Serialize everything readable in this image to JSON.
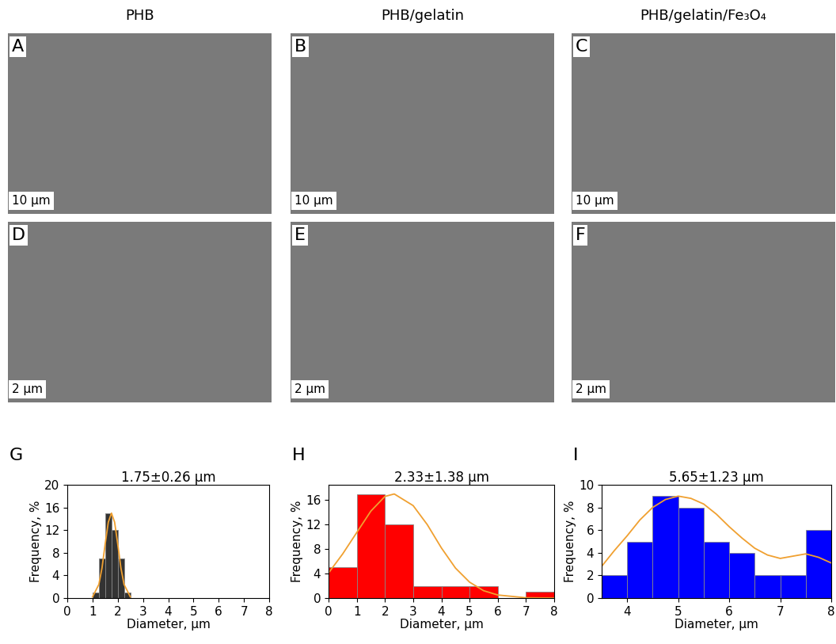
{
  "columns": [
    "PHB",
    "PHB/gelatin",
    "PHB/gelatin/Fe₃O₄"
  ],
  "images": [
    {
      "label": "A",
      "scale": "10 μm"
    },
    {
      "label": "B",
      "scale": "10 μm"
    },
    {
      "label": "C",
      "scale": "10 μm"
    },
    {
      "label": "D",
      "scale": "2 μm"
    },
    {
      "label": "E",
      "scale": "2 μm"
    },
    {
      "label": "F",
      "scale": "2 μm"
    }
  ],
  "chart_data": [
    {
      "type": "histogram",
      "label": "G",
      "title": "1.75±0.26 μm",
      "x_label": "Diameter, μm",
      "y_label": "Frequency, %",
      "bins": [
        1.0,
        1.25,
        1.5,
        1.75,
        2.0,
        2.25,
        2.5
      ],
      "counts": [
        1,
        7,
        15,
        12,
        7,
        1
      ],
      "color": "#333333",
      "fit": {
        "color": "#f0a030",
        "x": [
          1.0,
          1.25,
          1.375,
          1.5,
          1.625,
          1.75,
          1.875,
          2.0,
          2.125,
          2.25,
          2.5
        ],
        "values": [
          0.2,
          2.4,
          5.3,
          9.5,
          13.4,
          15,
          13.4,
          9.5,
          5.3,
          2.4,
          0.2
        ]
      },
      "xlim": [
        0,
        8
      ],
      "xticks": [
        0,
        1,
        2,
        3,
        4,
        5,
        6,
        7,
        8
      ],
      "ylim": [
        0,
        20
      ],
      "yticks": [
        0,
        4,
        8,
        12,
        16,
        20
      ]
    },
    {
      "type": "histogram",
      "label": "H",
      "title": "2.33±1.38 μm",
      "x_label": "Diameter, μm",
      "y_label": "Frequency, %",
      "bins": [
        0,
        1,
        2,
        3,
        4,
        5,
        6,
        7,
        8
      ],
      "counts": [
        5,
        17,
        12,
        2,
        2,
        2,
        0,
        1
      ],
      "color": "#ff0000",
      "fit": {
        "color": "#f0a030",
        "x": [
          0,
          0.5,
          1,
          1.5,
          2,
          2.33,
          3,
          3.5,
          4,
          4.5,
          5,
          5.5,
          6,
          7,
          8
        ],
        "values": [
          4.1,
          7.2,
          10.7,
          14.2,
          16.6,
          17,
          15.1,
          12.0,
          8.2,
          4.9,
          2.6,
          1.2,
          0.5,
          0.05,
          0
        ]
      },
      "xlim": [
        0,
        8
      ],
      "xticks": [
        0,
        1,
        2,
        3,
        4,
        5,
        6,
        7,
        8
      ],
      "ylim": [
        0,
        18.5
      ],
      "yticks": [
        0,
        4,
        8,
        12,
        16
      ]
    },
    {
      "type": "histogram",
      "label": "I",
      "title": "5.65±1.23 μm",
      "x_label": "Diameter, μm",
      "y_label": "Frequency, %",
      "bins": [
        3.5,
        4.0,
        4.5,
        5.0,
        5.5,
        6.0,
        6.5,
        7.0,
        7.5,
        8.0
      ],
      "counts": [
        2,
        5,
        9,
        8,
        5,
        4,
        2,
        2,
        6
      ],
      "color": "#0000ff",
      "fit": {
        "color": "#f0a030",
        "x": [
          3.5,
          3.75,
          4.0,
          4.25,
          4.5,
          4.75,
          5.0,
          5.25,
          5.5,
          5.75,
          6.0,
          6.25,
          6.5,
          6.75,
          7.0,
          7.25,
          7.5,
          7.75,
          8.0
        ],
        "values": [
          2.8,
          4.2,
          5.5,
          6.9,
          8.0,
          8.7,
          9.0,
          8.8,
          8.3,
          7.4,
          6.3,
          5.3,
          4.4,
          3.8,
          3.5,
          3.7,
          3.9,
          3.6,
          3.1
        ]
      },
      "xlim": [
        3.5,
        8
      ],
      "xticks": [
        4,
        5,
        6,
        7,
        8
      ],
      "ylim": [
        0,
        10
      ],
      "yticks": [
        0,
        2,
        4,
        6,
        8,
        10
      ]
    }
  ]
}
